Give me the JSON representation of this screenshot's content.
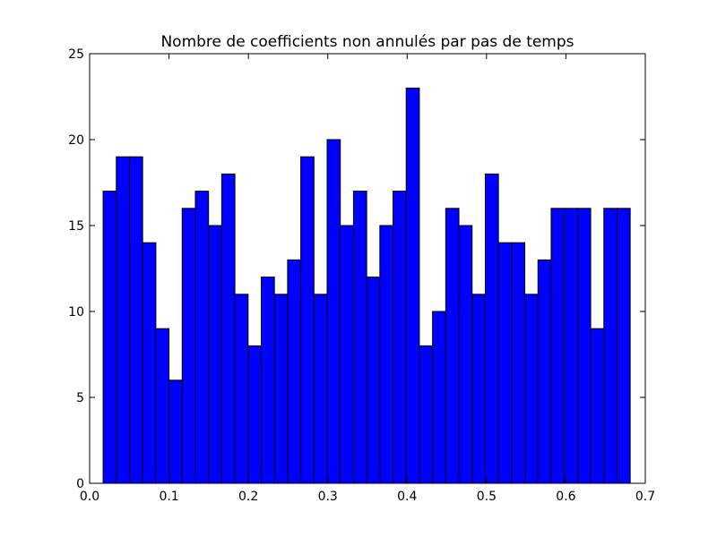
{
  "chart_data": {
    "type": "bar",
    "title": "Nombre de coefficients non annulés par pas de temps",
    "xlabel": "",
    "ylabel": "",
    "xlim": [
      0.0,
      0.7
    ],
    "ylim": [
      0,
      25
    ],
    "grid": false,
    "bar_color": "#0000ff",
    "edge_color": "#000000",
    "bin_start": 0.017,
    "bin_width": 0.0166,
    "values": [
      17,
      19,
      19,
      14,
      9,
      6,
      16,
      17,
      15,
      18,
      11,
      8,
      12,
      11,
      13,
      19,
      11,
      20,
      15,
      17,
      12,
      15,
      17,
      23,
      8,
      10,
      16,
      15,
      11,
      18,
      14,
      14,
      11,
      13,
      16,
      16,
      16,
      9,
      16,
      16
    ],
    "xticks": [
      {
        "value": 0.0,
        "label": "0.0"
      },
      {
        "value": 0.1,
        "label": "0.1"
      },
      {
        "value": 0.2,
        "label": "0.2"
      },
      {
        "value": 0.3,
        "label": "0.3"
      },
      {
        "value": 0.4,
        "label": "0.4"
      },
      {
        "value": 0.5,
        "label": "0.5"
      },
      {
        "value": 0.6,
        "label": "0.6"
      },
      {
        "value": 0.7,
        "label": "0.7"
      }
    ],
    "yticks": [
      {
        "value": 0,
        "label": "0"
      },
      {
        "value": 5,
        "label": "5"
      },
      {
        "value": 10,
        "label": "10"
      },
      {
        "value": 15,
        "label": "15"
      },
      {
        "value": 20,
        "label": "20"
      },
      {
        "value": 25,
        "label": "25"
      }
    ]
  }
}
